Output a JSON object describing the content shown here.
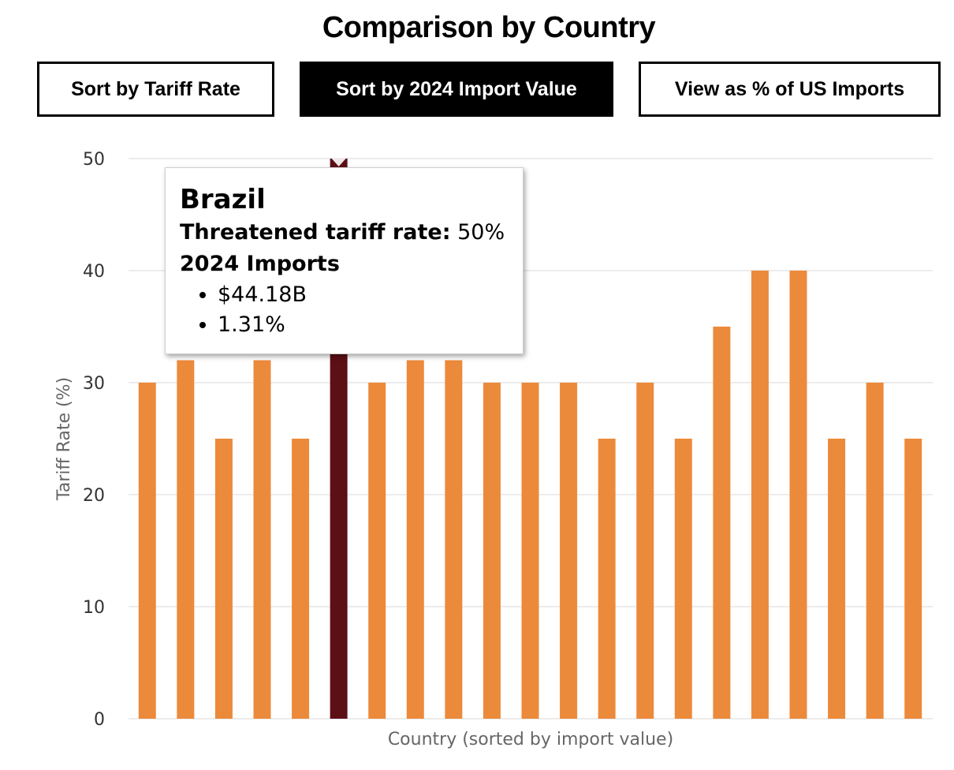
{
  "title": "Comparison by Country",
  "controls": {
    "sort_tariff_label": "Sort by Tariff Rate",
    "sort_import_label": "Sort by 2024 Import Value",
    "view_percent_label": "View as % of US Imports"
  },
  "tooltip": {
    "country": "Brazil",
    "rate_label": "Threatened tariff rate:",
    "rate_value": "50%",
    "imports_label": "2024 Imports",
    "imports_value": "$44.18B",
    "imports_share": "1.31%"
  },
  "colors": {
    "bar": "#ec8a3b",
    "highlight": "#5c1015",
    "grid": "#e6e6e6",
    "axis_text": "#333333",
    "axis_label": "#666666"
  },
  "chart_data": {
    "type": "bar",
    "xlabel": "Country (sorted by import value)",
    "ylabel": "Tariff Rate (%)",
    "ylim": [
      0,
      50
    ],
    "yticks": [
      0,
      10,
      20,
      30,
      40,
      50
    ],
    "grid": true,
    "highlight_index": 5,
    "values": [
      30,
      32,
      25,
      32,
      25,
      50,
      30,
      32,
      32,
      30,
      30,
      30,
      25,
      30,
      25,
      35,
      40,
      40,
      25,
      30,
      25
    ]
  }
}
